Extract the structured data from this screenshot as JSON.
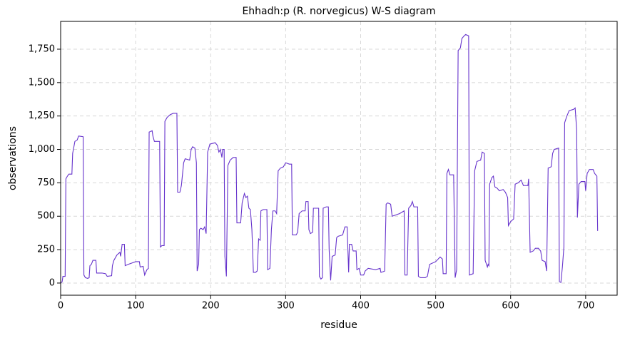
{
  "chart_data": {
    "type": "line",
    "title": "Ehhadh:p (R. norvegicus) W-S diagram",
    "x_label": "residue",
    "y_label": "observations",
    "xlim": [
      0,
      742
    ],
    "ylim": [
      -91,
      1958
    ],
    "xticks": [
      0,
      100,
      200,
      300,
      400,
      500,
      600,
      700
    ],
    "yticks": [
      0,
      250,
      500,
      750,
      {
        "value": 1000,
        "label": "1,000"
      },
      {
        "value": 1250,
        "label": "1,250"
      },
      {
        "value": 1500,
        "label": "1,500"
      },
      {
        "value": 1750,
        "label": "1,750"
      }
    ],
    "grid": true,
    "series": [
      {
        "color": "#6633cc",
        "x": [
          0,
          2,
          3,
          6,
          7,
          9,
          11,
          15,
          16,
          19,
          22,
          24,
          30,
          31,
          33,
          36,
          38,
          39,
          41,
          43,
          47,
          48,
          55,
          60,
          62,
          68,
          69,
          71,
          75,
          79,
          80,
          82,
          85,
          86,
          90,
          95,
          100,
          105,
          106,
          110,
          112,
          115,
          117,
          118,
          122,
          123,
          125,
          132,
          133,
          135,
          138,
          139,
          142,
          146,
          150,
          155,
          156,
          159,
          161,
          164,
          166,
          172,
          174,
          176,
          179,
          181,
          182,
          184,
          185,
          187,
          190,
          192,
          194,
          196,
          199,
          206,
          209,
          211,
          213,
          215,
          216,
          218,
          219,
          221,
          223,
          226,
          230,
          234,
          235,
          240,
          242,
          245,
          247,
          249,
          251,
          253,
          255,
          257,
          260,
          262,
          264,
          266,
          267,
          270,
          275,
          276,
          279,
          281,
          283,
          286,
          288,
          290,
          293,
          297,
          300,
          305,
          308,
          309,
          314,
          316,
          318,
          322,
          326,
          327,
          330,
          331,
          333,
          336,
          337,
          340,
          344,
          345,
          347,
          349,
          350,
          354,
          357,
          358,
          360,
          362,
          366,
          368,
          370,
          376,
          379,
          382,
          384,
          385,
          388,
          390,
          394,
          395,
          398,
          400,
          404,
          406,
          410,
          420,
          426,
          427,
          430,
          432,
          434,
          436,
          440,
          442,
          447,
          452,
          455,
          458,
          459,
          462,
          464,
          467,
          469,
          471,
          476,
          477,
          480,
          486,
          489,
          492,
          500,
          506,
          509,
          510,
          514,
          515,
          517,
          519,
          524,
          526,
          528,
          530,
          533,
          535,
          538,
          540,
          544,
          545,
          550,
          552,
          555,
          560,
          562,
          565,
          566,
          569,
          570,
          571,
          572,
          575,
          577,
          579,
          582,
          585,
          590,
          593,
          596,
          597,
          600,
          604,
          606,
          610,
          614,
          617,
          623,
          624,
          626,
          630,
          633,
          637,
          640,
          642,
          646,
          648,
          650,
          654,
          656,
          658,
          664,
          665,
          667,
          669,
          671,
          672,
          675,
          678,
          684,
          686,
          688,
          689,
          691,
          694,
          699,
          700,
          702,
          705,
          710,
          712,
          715,
          716
        ],
        "values": [
          0,
          10,
          50,
          50,
          780,
          800,
          815,
          815,
          970,
          1060,
          1070,
          1100,
          1095,
          60,
          40,
          35,
          40,
          130,
          140,
          170,
          170,
          75,
          75,
          70,
          50,
          55,
          130,
          170,
          210,
          230,
          200,
          290,
          290,
          130,
          140,
          150,
          160,
          160,
          120,
          125,
          60,
          100,
          110,
          1130,
          1140,
          1100,
          1060,
          1060,
          270,
          280,
          280,
          1210,
          1240,
          1260,
          1270,
          1270,
          680,
          680,
          730,
          900,
          930,
          920,
          1000,
          1020,
          1010,
          900,
          90,
          140,
          400,
          410,
          400,
          420,
          370,
          980,
          1040,
          1050,
          1030,
          980,
          1000,
          940,
          1000,
          1000,
          200,
          50,
          880,
          920,
          940,
          940,
          450,
          450,
          600,
          670,
          640,
          650,
          560,
          550,
          400,
          80,
          80,
          90,
          330,
          320,
          540,
          550,
          550,
          100,
          110,
          400,
          540,
          540,
          520,
          840,
          860,
          870,
          900,
          890,
          890,
          360,
          360,
          380,
          520,
          540,
          540,
          610,
          610,
          400,
          370,
          380,
          560,
          560,
          560,
          50,
          30,
          40,
          560,
          570,
          570,
          250,
          20,
          200,
          210,
          340,
          350,
          360,
          420,
          420,
          80,
          290,
          290,
          240,
          240,
          100,
          110,
          60,
          60,
          90,
          110,
          100,
          110,
          80,
          85,
          90,
          590,
          600,
          590,
          500,
          510,
          520,
          530,
          540,
          60,
          60,
          560,
          580,
          610,
          570,
          570,
          50,
          40,
          40,
          50,
          140,
          160,
          195,
          180,
          70,
          70,
          820,
          850,
          810,
          810,
          40,
          100,
          1740,
          1760,
          1830,
          1850,
          1860,
          1850,
          60,
          70,
          840,
          910,
          920,
          980,
          970,
          170,
          120,
          140,
          130,
          740,
          790,
          800,
          720,
          710,
          690,
          700,
          680,
          640,
          430,
          460,
          480,
          740,
          750,
          770,
          730,
          730,
          780,
          230,
          240,
          260,
          260,
          240,
          170,
          160,
          90,
          860,
          870,
          970,
          1000,
          1010,
          10,
          5,
          120,
          270,
          1200,
          1250,
          1290,
          1300,
          1310,
          1150,
          490,
          740,
          760,
          760,
          690,
          820,
          850,
          850,
          820,
          800,
          390
        ]
      }
    ]
  }
}
